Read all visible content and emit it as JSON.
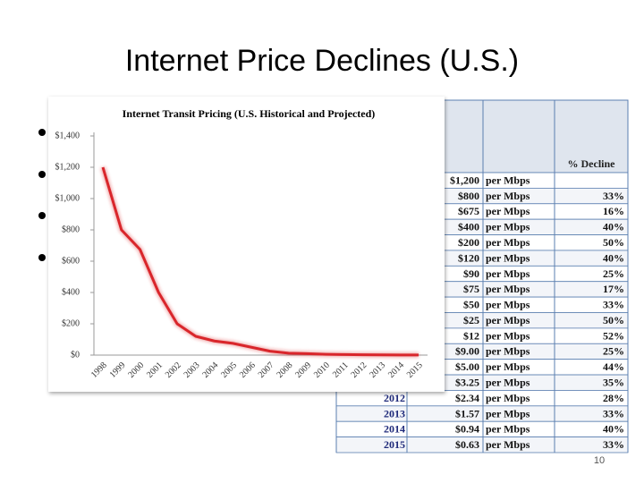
{
  "title": "Internet Price Declines (U.S.)",
  "page_number": "10",
  "table": {
    "header": [
      "% Decline"
    ],
    "rows": [
      [
        null,
        "$1,200",
        "per Mbps",
        null
      ],
      [
        null,
        "$800",
        "per Mbps",
        "33%"
      ],
      [
        null,
        "$675",
        "per Mbps",
        "16%"
      ],
      [
        null,
        "$400",
        "per Mbps",
        "40%"
      ],
      [
        null,
        "$200",
        "per Mbps",
        "50%"
      ],
      [
        null,
        "$120",
        "per Mbps",
        "40%"
      ],
      [
        null,
        "$90",
        "per Mbps",
        "25%"
      ],
      [
        null,
        "$75",
        "per Mbps",
        "17%"
      ],
      [
        null,
        "$50",
        "per Mbps",
        "33%"
      ],
      [
        null,
        "$25",
        "per Mbps",
        "50%"
      ],
      [
        null,
        "$12",
        "per Mbps",
        "52%"
      ],
      [
        null,
        "$9.00",
        "per Mbps",
        "25%"
      ],
      [
        null,
        "$5.00",
        "per Mbps",
        "44%"
      ],
      [
        null,
        "$3.25",
        "per Mbps",
        "35%"
      ],
      [
        "2012",
        "$2.34",
        "per Mbps",
        "28%"
      ],
      [
        "2013",
        "$1.57",
        "per Mbps",
        "33%"
      ],
      [
        "2014",
        "$0.94",
        "per Mbps",
        "40%"
      ],
      [
        "2015",
        "$0.63",
        "per Mbps",
        "33%"
      ]
    ]
  },
  "chart_data": {
    "type": "line",
    "title": "Internet Transit Pricing (U.S. Historical and Projected)",
    "categories": [
      "1998",
      "1999",
      "2000",
      "2001",
      "2002",
      "2003",
      "2004",
      "2005",
      "2006",
      "2007",
      "2008",
      "2009",
      "2010",
      "2011",
      "2012",
      "2013",
      "2014",
      "2015"
    ],
    "values": [
      1200,
      800,
      675,
      400,
      200,
      120,
      90,
      75,
      50,
      25,
      12,
      9,
      5,
      3.25,
      2.34,
      1.57,
      0.94,
      0.63
    ],
    "color": "#d9262b",
    "ylim": [
      0,
      1400
    ],
    "yticks": [
      {
        "value": 0,
        "label": "$0"
      },
      {
        "value": 200,
        "label": "$200"
      },
      {
        "value": 400,
        "label": "$400"
      },
      {
        "value": 600,
        "label": "$600"
      },
      {
        "value": 800,
        "label": "$800"
      },
      {
        "value": 1000,
        "label": "$1,000"
      },
      {
        "value": 1200,
        "label": "$1,200"
      },
      {
        "value": 1400,
        "label": "$1,400"
      }
    ],
    "grid": false
  }
}
